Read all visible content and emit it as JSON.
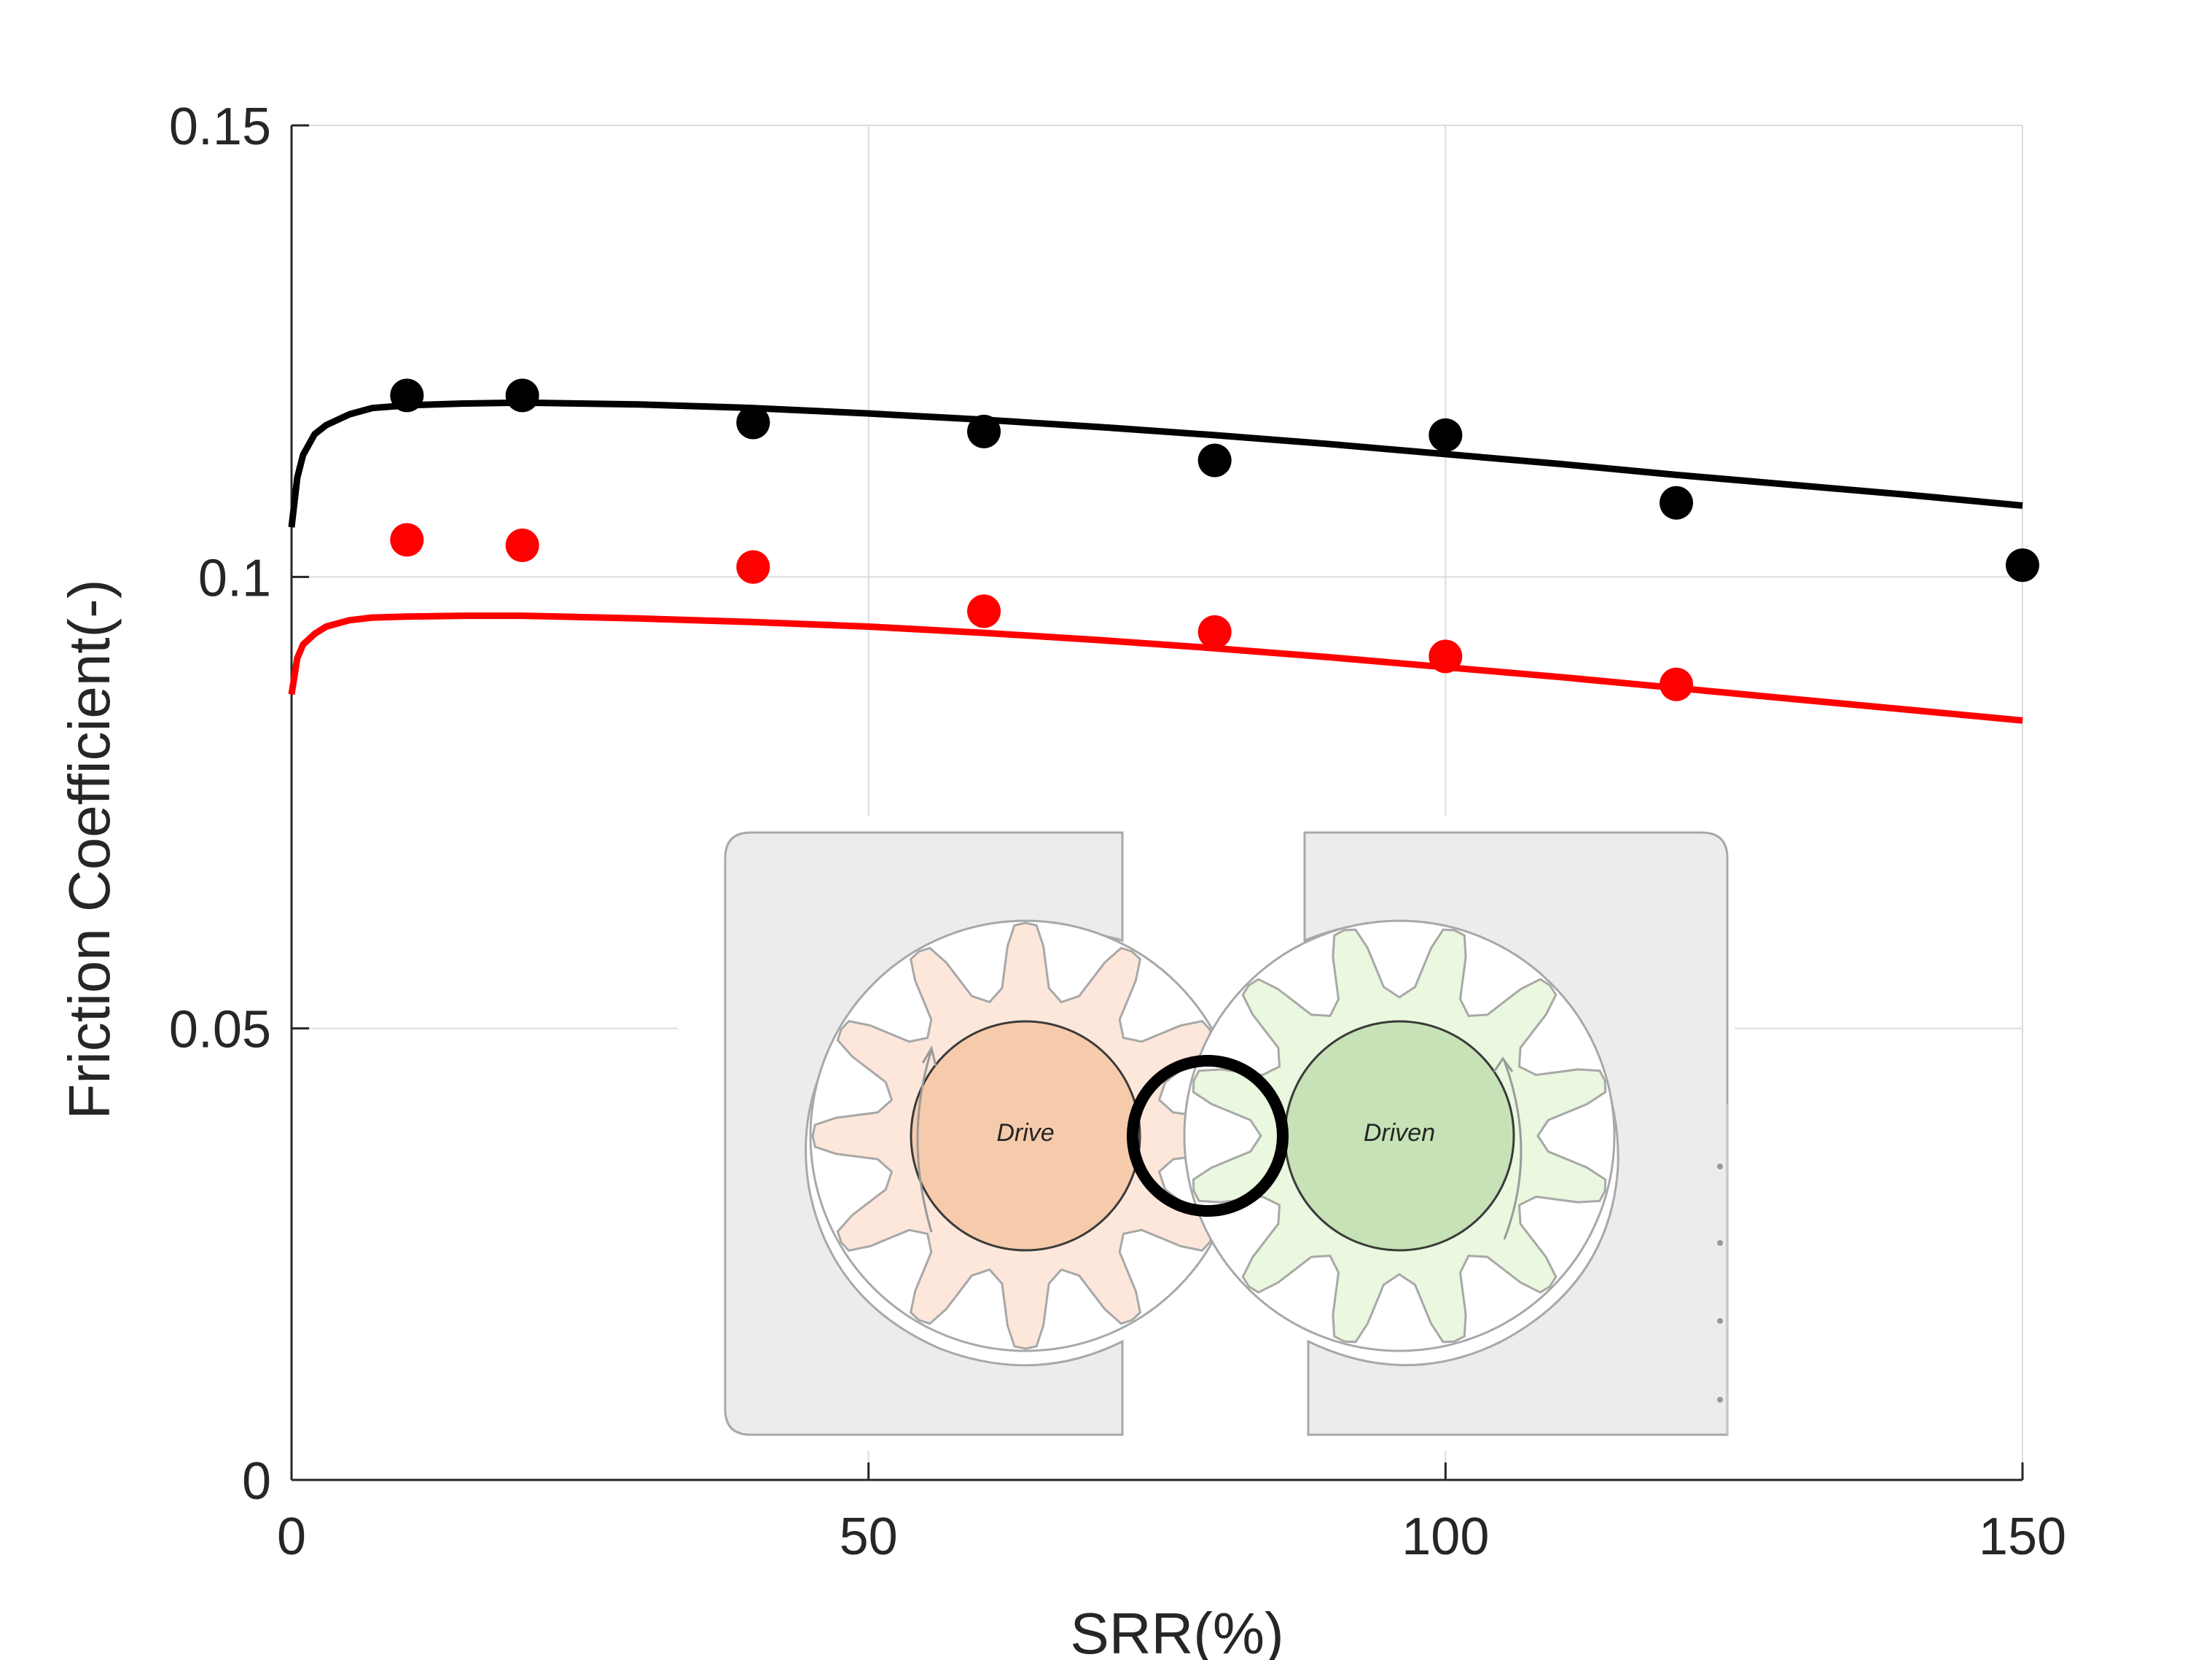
{
  "chart_data": {
    "type": "scatter",
    "title": "",
    "xlabel": "SRR(%)",
    "ylabel": "Friction Coefficient(-)",
    "xlim": [
      0,
      150
    ],
    "ylim": [
      0,
      0.15
    ],
    "grid": true,
    "x_ticks": [
      0,
      50,
      100,
      150
    ],
    "x_tick_labels": [
      "0",
      "50",
      "100",
      "150"
    ],
    "y_ticks": [
      0,
      0.05,
      0.1,
      0.15
    ],
    "y_tick_labels": [
      "0",
      "0.05",
      "0.1",
      "0.15"
    ],
    "series": [
      {
        "kind": "points",
        "color": "#000000",
        "x": [
          10,
          20,
          40,
          60,
          80,
          100,
          120,
          150
        ],
        "y": [
          0.1201,
          0.1201,
          0.1171,
          0.1161,
          0.1129,
          0.1157,
          0.1082,
          0.1013
        ]
      },
      {
        "kind": "points",
        "color": "#ff0000",
        "x": [
          10,
          20,
          40,
          60,
          80,
          100,
          120
        ],
        "y": [
          0.1041,
          0.1035,
          0.1011,
          0.0962,
          0.0939,
          0.0912,
          0.0881
        ]
      },
      {
        "kind": "line",
        "color": "#000000",
        "x": [
          0,
          0.5,
          1,
          2,
          3,
          5,
          7,
          10,
          15,
          20,
          30,
          40,
          50,
          60,
          70,
          80,
          90,
          100,
          110,
          120,
          130,
          140,
          150
        ],
        "y": [
          0.1055,
          0.111,
          0.1135,
          0.1158,
          0.1168,
          0.118,
          0.1187,
          0.119,
          0.1192,
          0.1193,
          0.1191,
          0.1187,
          0.1181,
          0.1174,
          0.1166,
          0.1157,
          0.1147,
          0.1136,
          0.1125,
          0.1113,
          0.1102,
          0.1091,
          0.1079
        ]
      },
      {
        "kind": "line",
        "color": "#ff0000",
        "x": [
          0,
          0.5,
          1,
          2,
          3,
          5,
          7,
          10,
          15,
          20,
          30,
          40,
          50,
          60,
          70,
          80,
          90,
          100,
          110,
          120,
          130,
          140,
          150
        ],
        "y": [
          0.087,
          0.091,
          0.0925,
          0.0937,
          0.0945,
          0.0952,
          0.0955,
          0.0956,
          0.0957,
          0.0957,
          0.0954,
          0.095,
          0.0945,
          0.0938,
          0.093,
          0.0921,
          0.0911,
          0.09,
          0.0889,
          0.0877,
          0.0865,
          0.0853,
          0.0841
        ]
      }
    ]
  },
  "inset": {
    "drive_label": "Drive",
    "driven_label": "Driven",
    "drive_color": "#f6cbac",
    "drive_tooth_color": "#fde7da",
    "driven_color": "#c6e2b6",
    "driven_tooth_color": "#e9f8de",
    "housing_color": "#ececec",
    "highlight_color": "#000000"
  }
}
